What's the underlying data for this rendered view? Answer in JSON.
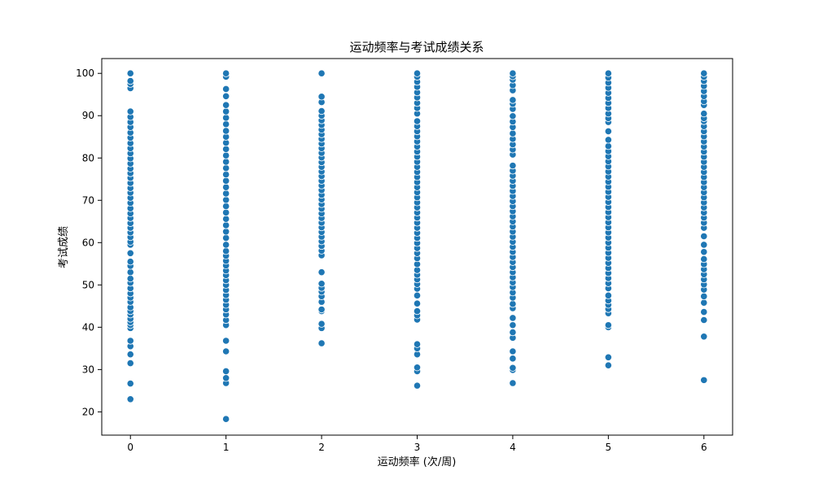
{
  "chart_data": {
    "type": "scatter",
    "title": "运动频率与考试成绩关系",
    "xlabel": "运动频率 (次/周)",
    "ylabel": "考试成绩",
    "xlim": [
      -0.3,
      6.3
    ],
    "ylim": [
      14.5,
      103.5
    ],
    "xticks": [
      0,
      1,
      2,
      3,
      4,
      5,
      6
    ],
    "yticks": [
      20,
      30,
      40,
      50,
      60,
      70,
      80,
      90,
      100
    ],
    "grid": false,
    "marker_color": "#1f77b4",
    "points": [
      {
        "x": 0,
        "y": [
          23,
          26.7,
          31.5,
          33.6,
          35.5,
          36.8,
          39.8,
          40.5,
          41.2,
          42,
          43,
          43.8,
          44.7,
          46,
          47,
          48,
          49.2,
          50.5,
          51.5,
          53,
          54.5,
          55.5,
          57.5,
          59.5,
          60.2,
          61.3,
          62.4,
          63.5,
          64.6,
          65.8,
          66.9,
          68.1,
          69.4,
          70.6,
          71.8,
          72.9,
          74.1,
          75.3,
          76.4,
          77.5,
          78.7,
          79.9,
          81.1,
          82.3,
          83.5,
          84.8,
          86,
          87.3,
          88.5,
          89.7,
          91,
          96.5,
          97.5,
          98.2,
          100
        ]
      },
      {
        "x": 1,
        "y": [
          18.3,
          26.8,
          28,
          29.6,
          34.3,
          36.8,
          40.5,
          41.7,
          43,
          44.2,
          45.3,
          46.5,
          47.6,
          48.8,
          50,
          51.1,
          52.3,
          53.4,
          54.6,
          55.7,
          56.9,
          58,
          59.5,
          61.1,
          62.6,
          64.1,
          65.6,
          67.1,
          68.6,
          70.1,
          71.6,
          73.1,
          74.6,
          76.1,
          77.6,
          79.1,
          80.6,
          82.1,
          83.6,
          85,
          86.4,
          88,
          89.5,
          91,
          92.5,
          94.6,
          96.3,
          99.2,
          100
        ]
      },
      {
        "x": 2,
        "y": [
          36.2,
          39.8,
          40.8,
          43.8,
          44.2,
          46,
          47.3,
          48.4,
          49.3,
          50.3,
          53,
          57,
          58.1,
          59.2,
          60.3,
          61.4,
          62.5,
          63.6,
          64.7,
          65.8,
          66.9,
          68,
          69.1,
          70.2,
          71.3,
          72.4,
          73.5,
          74.6,
          75.7,
          76.8,
          77.9,
          79,
          80.1,
          81.2,
          82.3,
          83.4,
          84.5,
          85.6,
          86.7,
          87.8,
          88.9,
          90,
          91.1,
          93.2,
          94.5,
          100
        ]
      },
      {
        "x": 3,
        "y": [
          26.2,
          29.6,
          30.5,
          33.6,
          35,
          36,
          41.8,
          42.8,
          43.8,
          45.6,
          47.5,
          49.1,
          50.2,
          51.3,
          52.4,
          53.5,
          54.9,
          56.3,
          57.5,
          58.7,
          59.9,
          61.1,
          62.3,
          63.5,
          64.7,
          65.9,
          67.1,
          68.3,
          69.5,
          70.7,
          71.9,
          73.1,
          74.3,
          75.5,
          76.7,
          77.9,
          79.1,
          80.3,
          81.5,
          82.7,
          83.9,
          85.1,
          86.3,
          87.5,
          88.7,
          90.5,
          91.8,
          93,
          94.3,
          95.5,
          96.8,
          98,
          99.2,
          100
        ]
      },
      {
        "x": 4,
        "y": [
          26.8,
          29.9,
          30.4,
          32.6,
          34.3,
          37.5,
          38.8,
          40.5,
          42.2,
          44.5,
          45.5,
          47,
          48.2,
          49.5,
          50.6,
          51.8,
          53,
          54.2,
          55.4,
          56.6,
          57.8,
          59,
          60.2,
          61.4,
          62.6,
          63.8,
          65,
          66.2,
          67.4,
          68.6,
          69.8,
          71,
          72.2,
          73.4,
          74.6,
          75.8,
          77,
          78.2,
          80.8,
          82,
          83.2,
          84.5,
          85.8,
          87.3,
          88.6,
          89.9,
          91.6,
          92.8,
          93.7,
          96,
          97.2,
          98.5,
          99.3,
          100
        ]
      },
      {
        "x": 5,
        "y": [
          31,
          32.9,
          40,
          40.5,
          43.3,
          44.3,
          45.3,
          46.3,
          47.5,
          49.2,
          50.4,
          51.6,
          52.8,
          54,
          55.2,
          56.4,
          57.6,
          58.8,
          60,
          61.2,
          62.4,
          63.6,
          64.8,
          66,
          67.2,
          68.4,
          69.6,
          70.8,
          72,
          73.2,
          74.4,
          75.6,
          76.8,
          78,
          79.2,
          80.4,
          81.6,
          82.8,
          84.3,
          86.3,
          88.5,
          89.4,
          90.5,
          91.8,
          93,
          94.2,
          95.4,
          96.6,
          97.8,
          99,
          100
        ]
      },
      {
        "x": 6,
        "y": [
          27.5,
          37.8,
          41.7,
          43.6,
          45.8,
          47.3,
          48.9,
          50.1,
          51.3,
          52.5,
          53.7,
          54.9,
          56.1,
          57.8,
          59.5,
          61.5,
          63.5,
          64.7,
          65.9,
          67.1,
          68.3,
          69.5,
          70.7,
          71.9,
          73.1,
          74.3,
          75.5,
          76.7,
          77.9,
          79.1,
          80.3,
          81.5,
          82.7,
          83.9,
          85.1,
          86.3,
          87.5,
          88.7,
          89.4,
          90.5,
          92.5,
          93.4,
          94.6,
          95.8,
          97,
          98.2,
          99.2,
          100
        ]
      }
    ]
  }
}
